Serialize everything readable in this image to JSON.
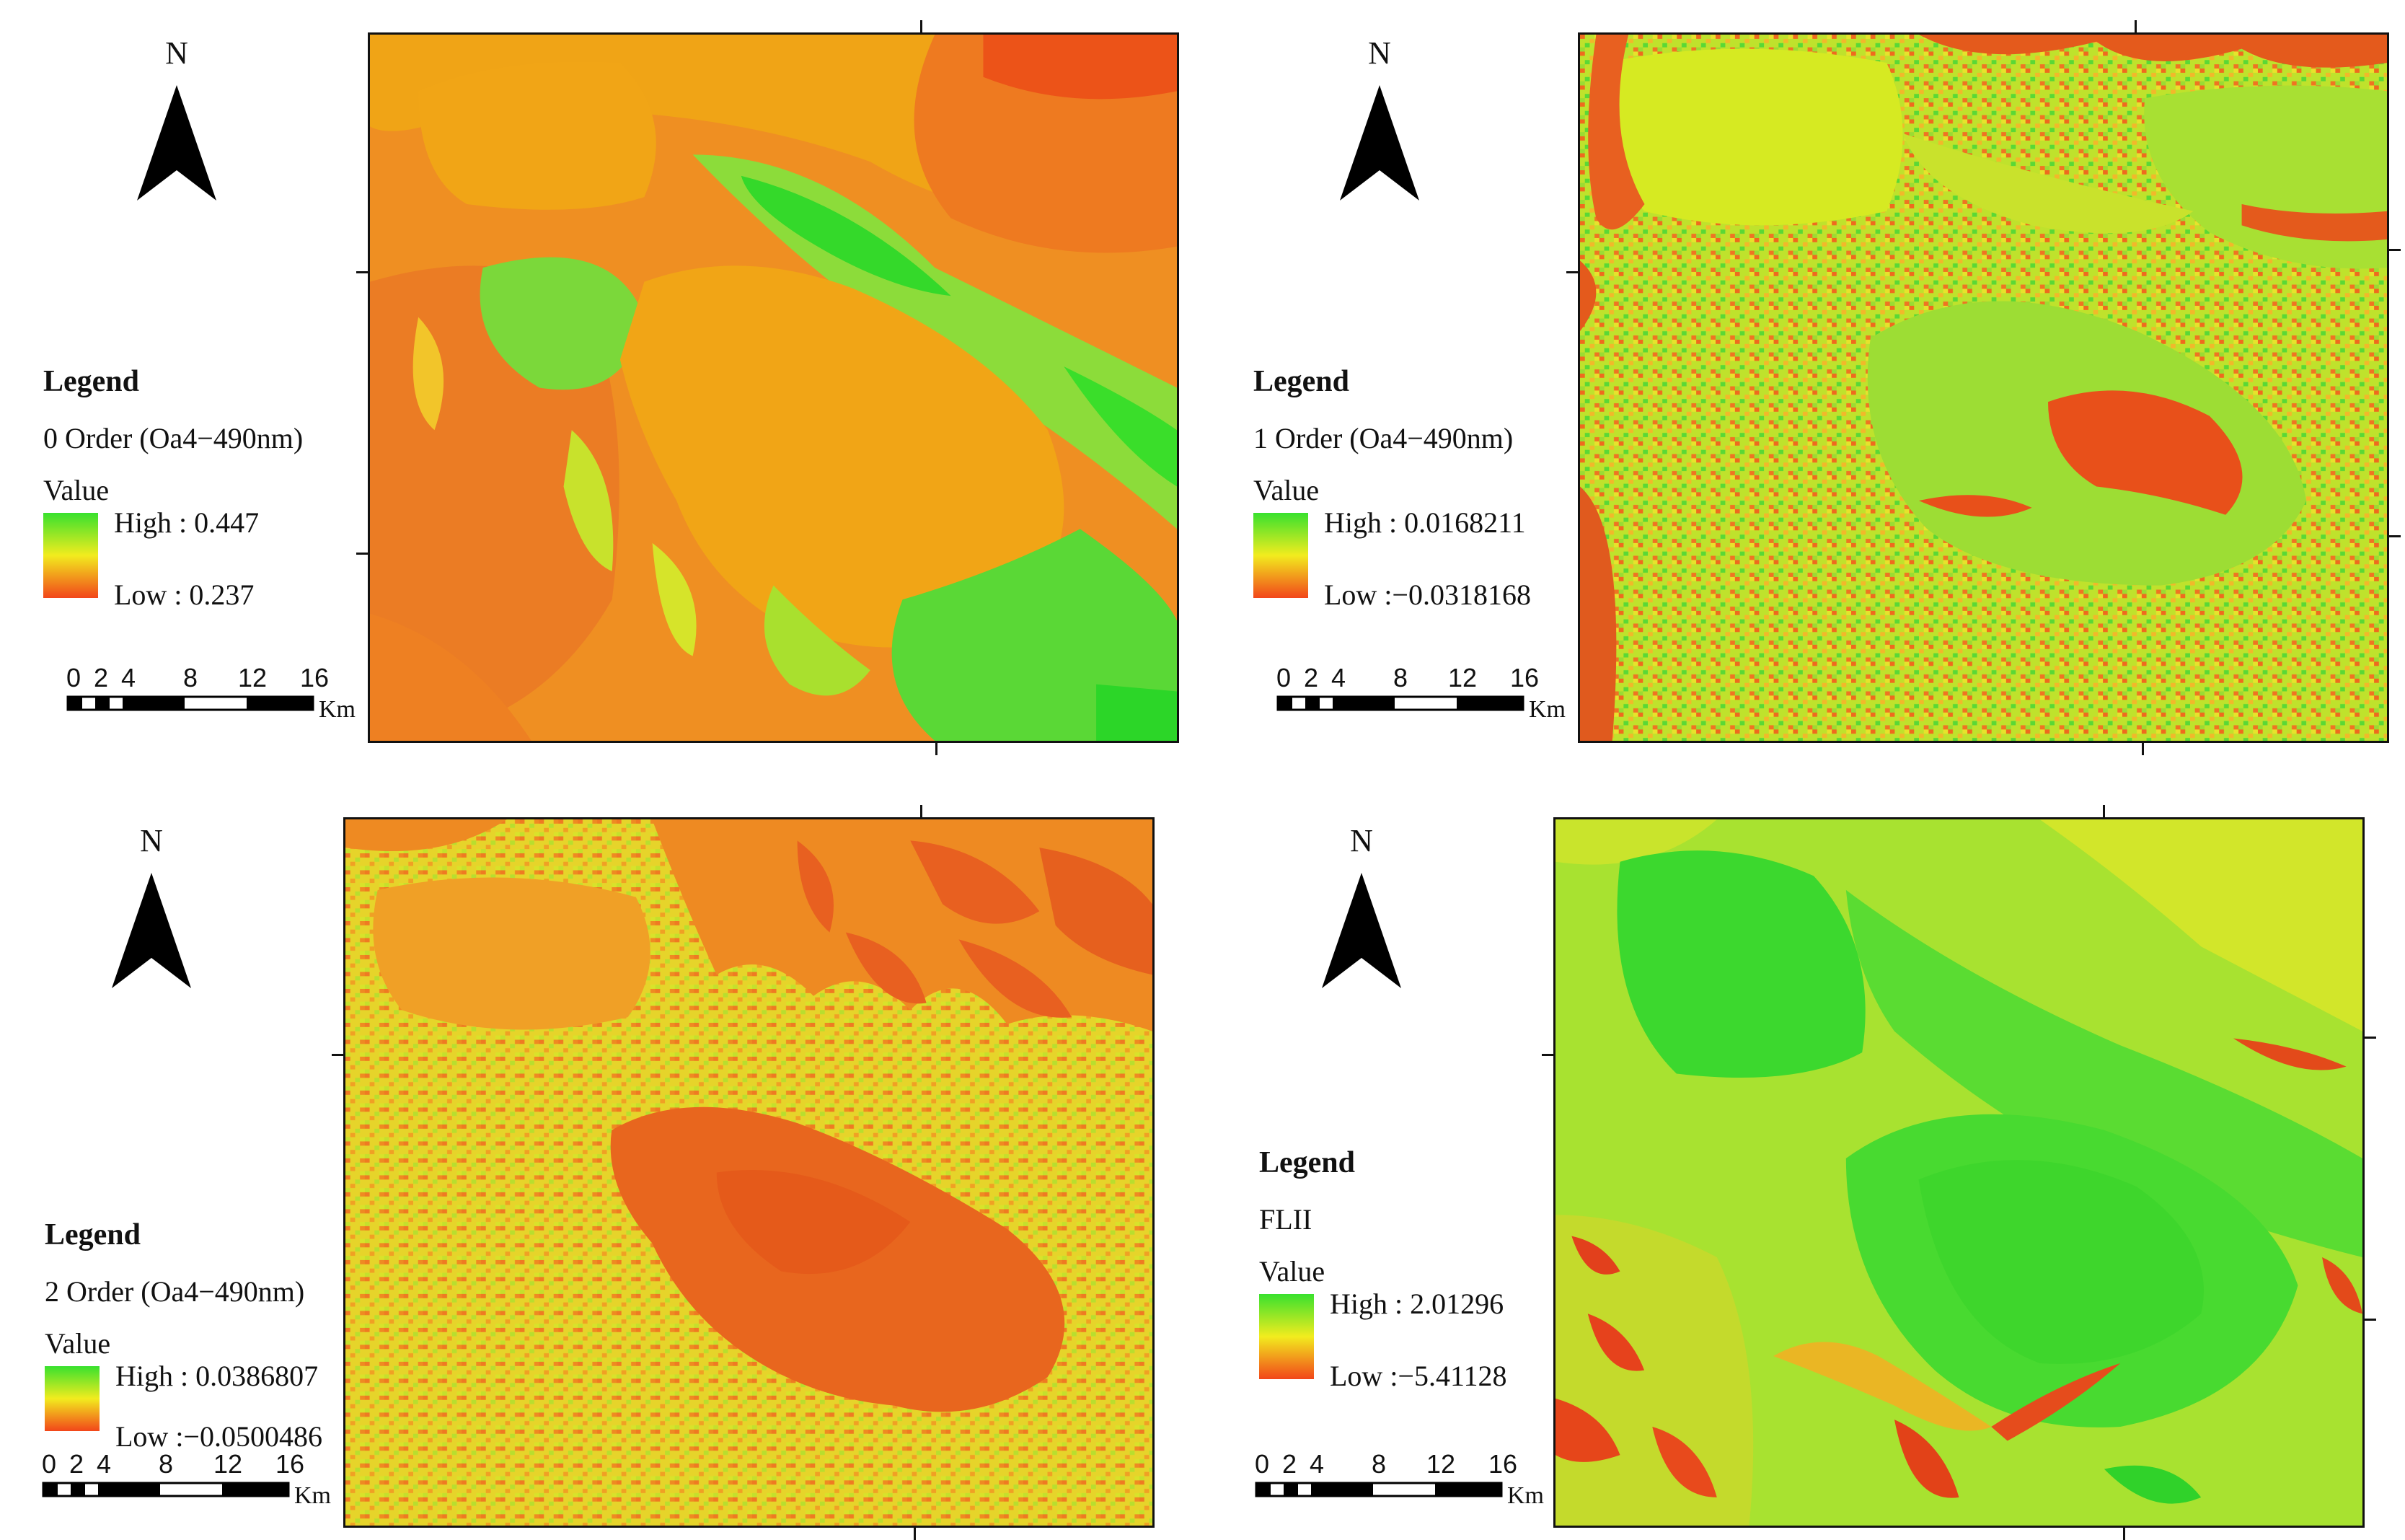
{
  "panels": [
    {
      "north_label": "N",
      "legend_title": "Legend",
      "layer_name": "0 Order (Oa4−490nm)",
      "value_label": "Value",
      "high_label": "High : 0.447",
      "low_label": "Low : 0.237",
      "scale_ticks": [
        "0",
        "2",
        "4",
        "8",
        "12",
        "16"
      ],
      "scale_unit": "Km"
    },
    {
      "north_label": "N",
      "legend_title": "Legend",
      "layer_name": "1 Order (Oa4−490nm)",
      "value_label": "Value",
      "high_label": "High : 0.0168211",
      "low_label": "Low :−0.0318168",
      "scale_ticks": [
        "0",
        "2",
        "4",
        "8",
        "12",
        "16"
      ],
      "scale_unit": "Km"
    },
    {
      "north_label": "N",
      "legend_title": "Legend",
      "layer_name": "2 Order (Oa4−490nm)",
      "value_label": "Value",
      "high_label": "High : 0.0386807",
      "low_label": "Low :−0.0500486",
      "scale_ticks": [
        "0",
        "2",
        "4",
        "8",
        "12",
        "16"
      ],
      "scale_unit": "Km"
    },
    {
      "north_label": "N",
      "legend_title": "Legend",
      "layer_name": "FLII",
      "value_label": "Value",
      "high_label": "High : 2.01296",
      "low_label": "Low :−5.41128",
      "scale_ticks": [
        "0",
        "2",
        "4",
        "8",
        "12",
        "16"
      ],
      "scale_unit": "Km"
    }
  ],
  "colors": {
    "ramp_high": "#38e12e",
    "ramp_mid": "#f2ec1e",
    "ramp_low": "#f2461a"
  }
}
